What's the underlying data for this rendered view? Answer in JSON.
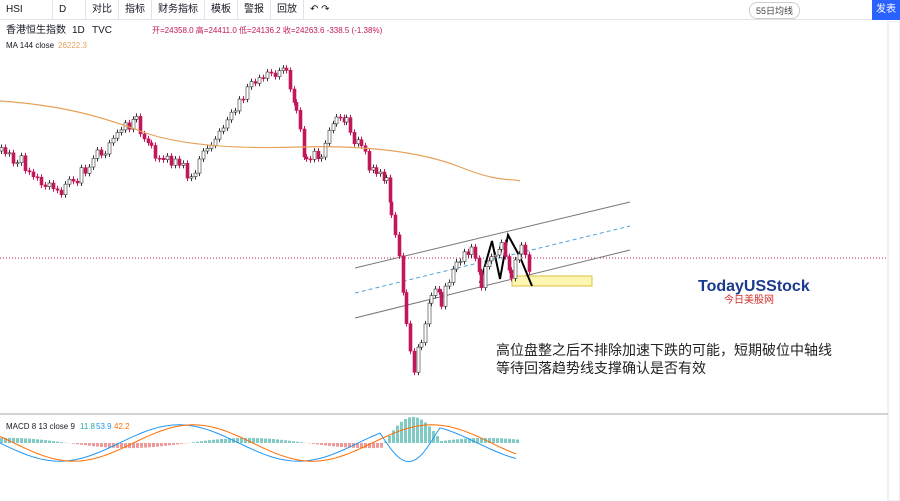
{
  "toolbar": {
    "symbol": "HSI",
    "interval": "D",
    "items": [
      "对比",
      "指标",
      "财务指标",
      "模板",
      "警报",
      "回放"
    ],
    "layout": "55日均线",
    "publish": "发表"
  },
  "legend": {
    "name": "香港恒生指数",
    "interval": "1D",
    "source": "TVC",
    "ohlc": "开=24358.0 高=24411.0 低=24136.2 收=24263.6 -338.5 (-1.38%)",
    "ma": "MA 144 close",
    "ma_value": "26222.3"
  },
  "watermark": {
    "brand": "TodayUSStock",
    "subtitle": "今日美股网"
  },
  "annotation": [
    "高位盘整之后不排除加速下跌的可能，短期破位中轴线",
    "等待回落趋势线支撑确认是否有效"
  ],
  "macd": {
    "label": "MACD 8 13 close 9",
    "values": [
      "11.8",
      "53.9",
      "42.2"
    ]
  }
}
